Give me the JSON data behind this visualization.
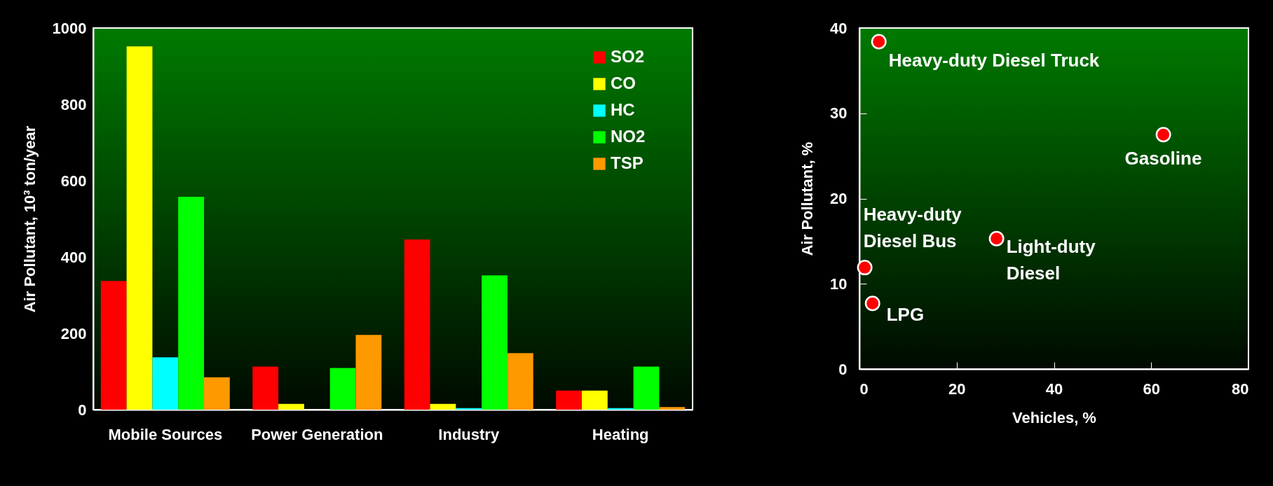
{
  "chart_data": [
    {
      "type": "bar",
      "ylabel": "Air Pollutant, 10³ ton/year",
      "categories": [
        "Mobile Sources",
        "Power Generation",
        "Industry",
        "Heating"
      ],
      "series": [
        {
          "name": "SO2",
          "color": "#ff0000",
          "values": [
            337,
            113,
            446,
            50
          ]
        },
        {
          "name": "CO",
          "color": "#ffff00",
          "values": [
            952,
            15,
            15,
            50
          ]
        },
        {
          "name": "HC",
          "color": "#00ffff",
          "values": [
            137,
            0,
            4,
            4
          ]
        },
        {
          "name": "NO2",
          "color": "#00ff00",
          "values": [
            558,
            109,
            352,
            113
          ]
        },
        {
          "name": "TSP",
          "color": "#ff9900",
          "values": [
            85,
            196,
            148,
            7
          ]
        }
      ],
      "ylim": [
        0,
        1000
      ],
      "yticks": [
        0,
        200,
        400,
        600,
        800,
        1000
      ],
      "grid": false,
      "legend": "top right"
    },
    {
      "type": "scatter",
      "xlabel": "Vehicles, %",
      "ylabel": "Air Pollutant, %",
      "x": [
        4.0,
        62.5,
        28.2,
        1.1,
        2.7
      ],
      "series": [
        {
          "color": "#ff0000",
          "values": [
            38.4,
            27.5,
            15.3,
            11.9,
            7.7
          ]
        }
      ],
      "xlim": [
        0,
        80
      ],
      "xticks": [
        0,
        20,
        40,
        60,
        80
      ],
      "ylim": [
        0,
        40
      ],
      "yticks": [
        0,
        10,
        20,
        30,
        40
      ],
      "grid": false,
      "marker": "circle",
      "annotations": [
        {
          "text": "Heavy-duty Diesel Truck",
          "x": 4.0,
          "y": 38.4
        },
        {
          "text": "Gasoline",
          "x": 62.5,
          "y": 27.5
        },
        {
          "text": "Light-duty\nDiesel",
          "x": 28.2,
          "y": 15.3
        },
        {
          "text": "Heavy-duty\nDiesel Bus",
          "x": 1.1,
          "y": 11.9
        },
        {
          "text": "LPG",
          "x": 2.7,
          "y": 7.7
        }
      ]
    }
  ]
}
